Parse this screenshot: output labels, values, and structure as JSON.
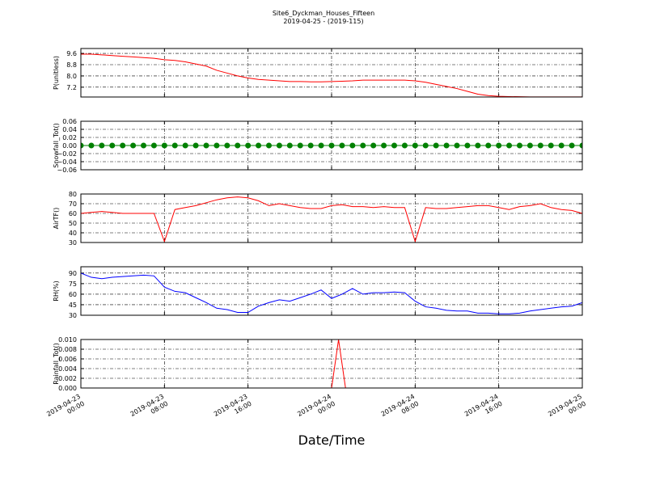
{
  "figure": {
    "title": "Site6_Dyckman_Houses_Fifteen",
    "subtitle": "2019-04-25 - (2019-115)",
    "xlabel": "Date/Time"
  },
  "chart_data": [
    {
      "type": "line",
      "ylabel": "P(unitless)",
      "color": "#ff0000",
      "grid": true,
      "xlim": [
        "2019-04-23 00:00",
        "2019-04-25 00:00"
      ],
      "xticks": [
        "2019-04-23 00:00",
        "2019-04-23 08:00",
        "2019-04-23 16:00",
        "2019-04-24 00:00",
        "2019-04-24 08:00",
        "2019-04-24 16:00",
        "2019-04-25 00:00"
      ],
      "ylim": [
        6.5,
        9.95
      ],
      "yticks": [
        {
          "value": 7.2,
          "label": "7.2"
        },
        {
          "value": 8,
          "label": "8.0"
        },
        {
          "value": 8.8,
          "label": "8.8"
        },
        {
          "value": 9.6,
          "label": "9.6"
        }
      ],
      "x": [
        "2019-04-23 00:00",
        "2019-04-23 01:00",
        "2019-04-23 02:00",
        "2019-04-23 03:00",
        "2019-04-23 04:00",
        "2019-04-23 05:00",
        "2019-04-23 06:00",
        "2019-04-23 07:00",
        "2019-04-23 08:00",
        "2019-04-23 09:00",
        "2019-04-23 10:00",
        "2019-04-23 11:00",
        "2019-04-23 12:00",
        "2019-04-23 13:00",
        "2019-04-23 14:00",
        "2019-04-23 15:00",
        "2019-04-23 16:00",
        "2019-04-23 17:00",
        "2019-04-23 18:00",
        "2019-04-23 19:00",
        "2019-04-23 20:00",
        "2019-04-23 21:00",
        "2019-04-23 22:00",
        "2019-04-23 23:00",
        "2019-04-24 00:00",
        "2019-04-24 01:00",
        "2019-04-24 02:00",
        "2019-04-24 03:00",
        "2019-04-24 04:00",
        "2019-04-24 05:00",
        "2019-04-24 06:00",
        "2019-04-24 07:00",
        "2019-04-24 08:00",
        "2019-04-24 09:00",
        "2019-04-24 10:00",
        "2019-04-24 11:00",
        "2019-04-24 12:00",
        "2019-04-24 13:00",
        "2019-04-24 14:00",
        "2019-04-24 15:00",
        "2019-04-24 16:00",
        "2019-04-24 17:00",
        "2019-04-24 18:00",
        "2019-04-24 19:00",
        "2019-04-24 20:00",
        "2019-04-24 21:00",
        "2019-04-24 22:00",
        "2019-04-24 23:00",
        "2019-04-25 00:00"
      ],
      "values": [
        9.55,
        9.55,
        9.5,
        9.45,
        9.4,
        9.35,
        9.3,
        9.25,
        9.15,
        9.1,
        9.0,
        8.85,
        8.7,
        8.4,
        8.2,
        8.0,
        7.85,
        7.75,
        7.7,
        7.65,
        7.6,
        7.6,
        7.58,
        7.58,
        7.6,
        7.62,
        7.65,
        7.7,
        7.7,
        7.7,
        7.7,
        7.7,
        7.65,
        7.55,
        7.4,
        7.25,
        7.1,
        6.9,
        6.7,
        6.6,
        6.55,
        6.53,
        6.52,
        6.51,
        6.51,
        6.51,
        6.51,
        6.51,
        6.51
      ]
    },
    {
      "type": "line",
      "ylabel": "Snowfall_Tot()",
      "color": "#008000",
      "marker": true,
      "grid": true,
      "xlim": [
        "2019-04-23 00:00",
        "2019-04-25 00:00"
      ],
      "xticks": [
        "2019-04-23 00:00",
        "2019-04-23 08:00",
        "2019-04-23 16:00",
        "2019-04-24 00:00",
        "2019-04-24 08:00",
        "2019-04-24 16:00",
        "2019-04-25 00:00"
      ],
      "ylim": [
        -0.06,
        0.06
      ],
      "yticks": [
        {
          "value": -0.06,
          "label": "−0.06"
        },
        {
          "value": -0.04,
          "label": "−0.04"
        },
        {
          "value": -0.02,
          "label": "−0.02"
        },
        {
          "value": 0,
          "label": "0.00"
        },
        0.02,
        0.04,
        0.06
      ],
      "x": [
        "2019-04-23 00:00",
        "2019-04-23 01:00",
        "2019-04-23 02:00",
        "2019-04-23 03:00",
        "2019-04-23 04:00",
        "2019-04-23 05:00",
        "2019-04-23 06:00",
        "2019-04-23 07:00",
        "2019-04-23 08:00",
        "2019-04-23 09:00",
        "2019-04-23 10:00",
        "2019-04-23 11:00",
        "2019-04-23 12:00",
        "2019-04-23 13:00",
        "2019-04-23 14:00",
        "2019-04-23 15:00",
        "2019-04-23 16:00",
        "2019-04-23 17:00",
        "2019-04-23 18:00",
        "2019-04-23 19:00",
        "2019-04-23 20:00",
        "2019-04-23 21:00",
        "2019-04-23 22:00",
        "2019-04-23 23:00",
        "2019-04-24 00:00",
        "2019-04-24 01:00",
        "2019-04-24 02:00",
        "2019-04-24 03:00",
        "2019-04-24 04:00",
        "2019-04-24 05:00",
        "2019-04-24 06:00",
        "2019-04-24 07:00",
        "2019-04-24 08:00",
        "2019-04-24 09:00",
        "2019-04-24 10:00",
        "2019-04-24 11:00",
        "2019-04-24 12:00",
        "2019-04-24 13:00",
        "2019-04-24 14:00",
        "2019-04-24 15:00",
        "2019-04-24 16:00",
        "2019-04-24 17:00",
        "2019-04-24 18:00",
        "2019-04-24 19:00",
        "2019-04-24 20:00",
        "2019-04-24 21:00",
        "2019-04-24 22:00",
        "2019-04-24 23:00",
        "2019-04-25 00:00"
      ],
      "values": [
        0,
        0,
        0,
        0,
        0,
        0,
        0,
        0,
        0,
        0,
        0,
        0,
        0,
        0,
        0,
        0,
        0,
        0,
        0,
        0,
        0,
        0,
        0,
        0,
        0,
        0,
        0,
        0,
        0,
        0,
        0,
        0,
        0,
        0,
        0,
        0,
        0,
        0,
        0,
        0,
        0,
        0,
        0,
        0,
        0,
        0,
        0,
        0,
        0
      ]
    },
    {
      "type": "line",
      "ylabel": "AirTF()",
      "color": "#ff0000",
      "grid": true,
      "xlim": [
        "2019-04-23 00:00",
        "2019-04-25 00:00"
      ],
      "xticks": [
        "2019-04-23 00:00",
        "2019-04-23 08:00",
        "2019-04-23 16:00",
        "2019-04-24 00:00",
        "2019-04-24 08:00",
        "2019-04-24 16:00",
        "2019-04-25 00:00"
      ],
      "ylim": [
        30,
        80
      ],
      "yticks": [
        30,
        40,
        50,
        60,
        70,
        80
      ],
      "x": [
        "2019-04-23 00:00",
        "2019-04-23 01:00",
        "2019-04-23 02:00",
        "2019-04-23 03:00",
        "2019-04-23 04:00",
        "2019-04-23 05:00",
        "2019-04-23 06:00",
        "2019-04-23 07:00",
        "2019-04-23 08:00",
        "2019-04-23 09:00",
        "2019-04-23 10:00",
        "2019-04-23 11:00",
        "2019-04-23 12:00",
        "2019-04-23 13:00",
        "2019-04-23 14:00",
        "2019-04-23 15:00",
        "2019-04-23 16:00",
        "2019-04-23 17:00",
        "2019-04-23 18:00",
        "2019-04-23 19:00",
        "2019-04-23 20:00",
        "2019-04-23 21:00",
        "2019-04-23 22:00",
        "2019-04-23 23:00",
        "2019-04-24 00:00",
        "2019-04-24 01:00",
        "2019-04-24 02:00",
        "2019-04-24 03:00",
        "2019-04-24 04:00",
        "2019-04-24 05:00",
        "2019-04-24 06:00",
        "2019-04-24 07:00",
        "2019-04-24 08:00",
        "2019-04-24 09:00",
        "2019-04-24 10:00",
        "2019-04-24 11:00",
        "2019-04-24 12:00",
        "2019-04-24 13:00",
        "2019-04-24 14:00",
        "2019-04-24 15:00",
        "2019-04-24 16:00",
        "2019-04-24 17:00",
        "2019-04-24 18:00",
        "2019-04-24 19:00",
        "2019-04-24 20:00",
        "2019-04-24 21:00",
        "2019-04-24 22:00",
        "2019-04-24 23:00",
        "2019-04-25 00:00"
      ],
      "values": [
        60,
        61,
        62,
        61,
        60,
        60,
        60,
        60,
        31,
        64,
        66,
        68,
        71,
        74,
        76,
        77,
        76,
        73,
        68,
        70,
        68,
        66,
        65,
        65,
        68,
        69,
        67,
        67,
        66,
        67,
        66,
        66,
        31,
        66,
        65,
        65,
        66,
        67,
        68,
        68,
        66,
        64,
        67,
        68,
        70,
        66,
        64,
        63,
        60
      ]
    },
    {
      "type": "line",
      "ylabel": "RH(%)",
      "color": "#0000ff",
      "grid": true,
      "xlim": [
        "2019-04-23 00:00",
        "2019-04-25 00:00"
      ],
      "xticks": [
        "2019-04-23 00:00",
        "2019-04-23 08:00",
        "2019-04-23 16:00",
        "2019-04-24 00:00",
        "2019-04-24 08:00",
        "2019-04-24 16:00",
        "2019-04-25 00:00"
      ],
      "ylim": [
        30,
        99
      ],
      "yticks": [
        30,
        45,
        60,
        75,
        90
      ],
      "x": [
        "2019-04-23 00:00",
        "2019-04-23 01:00",
        "2019-04-23 02:00",
        "2019-04-23 03:00",
        "2019-04-23 04:00",
        "2019-04-23 05:00",
        "2019-04-23 06:00",
        "2019-04-23 07:00",
        "2019-04-23 08:00",
        "2019-04-23 09:00",
        "2019-04-23 10:00",
        "2019-04-23 11:00",
        "2019-04-23 12:00",
        "2019-04-23 13:00",
        "2019-04-23 14:00",
        "2019-04-23 15:00",
        "2019-04-23 16:00",
        "2019-04-23 17:00",
        "2019-04-23 18:00",
        "2019-04-23 19:00",
        "2019-04-23 20:00",
        "2019-04-23 21:00",
        "2019-04-23 22:00",
        "2019-04-23 23:00",
        "2019-04-24 00:00",
        "2019-04-24 01:00",
        "2019-04-24 02:00",
        "2019-04-24 03:00",
        "2019-04-24 04:00",
        "2019-04-24 05:00",
        "2019-04-24 06:00",
        "2019-04-24 07:00",
        "2019-04-24 08:00",
        "2019-04-24 09:00",
        "2019-04-24 10:00",
        "2019-04-24 11:00",
        "2019-04-24 12:00",
        "2019-04-24 13:00",
        "2019-04-24 14:00",
        "2019-04-24 15:00",
        "2019-04-24 16:00",
        "2019-04-24 17:00",
        "2019-04-24 18:00",
        "2019-04-24 19:00",
        "2019-04-24 20:00",
        "2019-04-24 21:00",
        "2019-04-24 22:00",
        "2019-04-24 23:00",
        "2019-04-25 00:00"
      ],
      "values": [
        90,
        84,
        82,
        84,
        85,
        86,
        87,
        86,
        70,
        64,
        62,
        55,
        48,
        40,
        38,
        34,
        34,
        43,
        48,
        52,
        50,
        55,
        60,
        66,
        54,
        60,
        68,
        60,
        62,
        62,
        63,
        62,
        50,
        42,
        40,
        37,
        36,
        36,
        33,
        33,
        32,
        32,
        33,
        36,
        38,
        40,
        42,
        43,
        48
      ]
    },
    {
      "type": "line",
      "ylabel": "Rainfall_Tot()",
      "color": "#ff0000",
      "grid": true,
      "xlim": [
        "2019-04-23 00:00",
        "2019-04-25 00:00"
      ],
      "xticks": [
        "2019-04-23 00:00",
        "2019-04-23 08:00",
        "2019-04-23 16:00",
        "2019-04-24 00:00",
        "2019-04-24 08:00",
        "2019-04-24 16:00",
        "2019-04-25 00:00"
      ],
      "ylim": [
        0,
        0.01
      ],
      "yticks": [
        {
          "value": 0,
          "label": "0.000"
        },
        0.002,
        0.004,
        0.006,
        0.008,
        {
          "value": 0.01,
          "label": "0.010"
        }
      ],
      "x": [
        "2019-04-23 00:00",
        "2019-04-24 00:00",
        "2019-04-24 00:40",
        "2019-04-24 01:20",
        "2019-04-25 00:00"
      ],
      "values": [
        0,
        0,
        0.01,
        0,
        0
      ]
    }
  ]
}
